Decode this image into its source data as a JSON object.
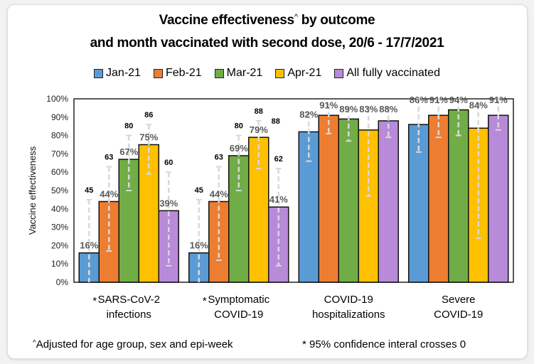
{
  "chart_data": {
    "type": "bar",
    "title_line1": "Vaccine effectiveness",
    "title_sup": "^",
    "title_line1_rest": " by outcome",
    "title_line2": "and month vaccinated with second dose, 20/6 - 17/7/2021",
    "ylabel": "Vaccine effectiveness",
    "xlabel": "",
    "ylim": [
      0,
      100
    ],
    "yticks": [
      "0%",
      "10%",
      "20%",
      "30%",
      "40%",
      "50%",
      "60%",
      "70%",
      "80%",
      "90%",
      "100%"
    ],
    "grid": false,
    "legend_position": "top",
    "categories": [
      {
        "star": "*",
        "line1": "SARS-CoV-2",
        "line2": "infections"
      },
      {
        "star": "*",
        "line1": "Symptomatic",
        "line2": "COVID-19"
      },
      {
        "star": "",
        "line1": "COVID-19",
        "line2": "hospitalizations"
      },
      {
        "star": "",
        "line1": "Severe",
        "line2": "COVID-19"
      }
    ],
    "series": [
      {
        "name": "Jan-21",
        "color": "#5b9bd5",
        "values": [
          16,
          16,
          82,
          86
        ],
        "ci_upper": [
          45,
          45,
          92,
          100
        ],
        "ci_lower": [
          -10,
          -10,
          66,
          71
        ],
        "upper_labels": [
          "45",
          "45",
          "",
          ""
        ]
      },
      {
        "name": "Feb-21",
        "color": "#ed7d31",
        "values": [
          44,
          44,
          91,
          91
        ],
        "ci_upper": [
          63,
          63,
          97,
          100
        ],
        "ci_lower": [
          17,
          12,
          81,
          79
        ],
        "upper_labels": [
          "63",
          "63",
          "",
          ""
        ]
      },
      {
        "name": "Mar-21",
        "color": "#70ad47",
        "values": [
          67,
          69,
          89,
          94
        ],
        "ci_upper": [
          80,
          80,
          95,
          100
        ],
        "ci_lower": [
          50,
          50,
          77,
          80
        ],
        "upper_labels": [
          "80",
          "80",
          "",
          ""
        ]
      },
      {
        "name": "Apr-21",
        "color": "#ffc000",
        "values": [
          75,
          79,
          83,
          84
        ],
        "ci_upper": [
          86,
          88,
          95,
          97
        ],
        "ci_lower": [
          59,
          62,
          47,
          24
        ],
        "upper_labels": [
          "86",
          "88",
          "",
          ""
        ]
      },
      {
        "name": "All fully vaccinated",
        "color": "#b88ad9",
        "values": [
          39,
          41,
          88,
          91
        ],
        "ci_upper": [
          60,
          62,
          95,
          100
        ],
        "ci_lower": [
          9,
          9,
          79,
          83
        ],
        "upper_labels": [
          "60",
          "62",
          "",
          ""
        ]
      }
    ],
    "value_labels": [
      [
        "16%",
        "44%",
        "67%",
        "75%",
        "39%"
      ],
      [
        "16%",
        "44%",
        "69%",
        "79%",
        "41%"
      ],
      [
        "82%",
        "91%",
        "89%",
        "83%",
        "88%"
      ],
      [
        "86%",
        "91%",
        "94%",
        "84%",
        "91%"
      ]
    ],
    "extra_annotation": "88"
  },
  "footnotes": {
    "left_sup": "^",
    "left": "Adjusted for age group, sex and epi-week",
    "right": "* 95% confidence interal  crosses 0"
  }
}
